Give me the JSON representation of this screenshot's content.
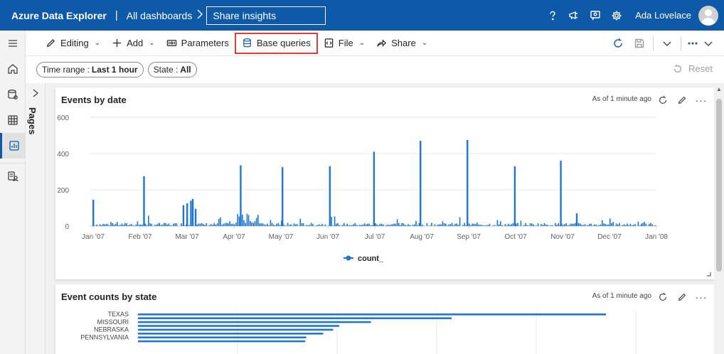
{
  "topbar": {
    "brand": "Azure Data Explorer",
    "separator": "|",
    "crumb": "All dashboards",
    "dashboard_title": "Share insights",
    "user_name": "Ada Lovelace",
    "icons": [
      "help-icon",
      "feedback-icon",
      "people-feedback-icon",
      "settings-icon"
    ]
  },
  "rail": {
    "items": [
      "menu-icon",
      "home-icon",
      "data-icon",
      "query-icon",
      "dashboards-icon",
      "monitor-icon"
    ]
  },
  "toolbar": {
    "editing": "Editing",
    "add": "Add",
    "parameters": "Parameters",
    "base_queries": "Base queries",
    "file": "File",
    "share": "Share",
    "highlight_color": "#e03b3b"
  },
  "filters": {
    "time_range_label": "Time range :",
    "time_range_value": "Last 1 hour",
    "state_label": "State :",
    "state_value": "All",
    "reset": "Reset"
  },
  "pages": {
    "label": "Pages"
  },
  "cards": [
    {
      "title": "Events by date",
      "as_of": "As of 1 minute ago"
    },
    {
      "title": "Event counts by state",
      "as_of": "As of 1 minute ago"
    }
  ],
  "chart_data": [
    {
      "type": "bar",
      "ylim": [
        0,
        600
      ],
      "yticks": [
        "0",
        "200",
        "400",
        "600"
      ],
      "xticks": [
        "Jan '07",
        "Feb '07",
        "Mar '07",
        "Apr '07",
        "May '07",
        "Jun '07",
        "Jul '07",
        "Aug '07",
        "Sep '07",
        "Oct '07",
        "Nov '07",
        "Dec '07",
        "Jan '08"
      ],
      "legend": [
        "count_"
      ],
      "series_color": "#1f77d0",
      "spikes": [
        {
          "x": 0.0,
          "y": 145
        },
        {
          "x": 1.08,
          "y": 275
        },
        {
          "x": 1.92,
          "y": 115
        },
        {
          "x": 2.0,
          "y": 125
        },
        {
          "x": 2.08,
          "y": 140
        },
        {
          "x": 2.12,
          "y": 150
        },
        {
          "x": 2.18,
          "y": 95
        },
        {
          "x": 3.14,
          "y": 335
        },
        {
          "x": 4.03,
          "y": 325
        },
        {
          "x": 5.04,
          "y": 330
        },
        {
          "x": 5.98,
          "y": 410
        },
        {
          "x": 6.97,
          "y": 470
        },
        {
          "x": 7.97,
          "y": 475
        },
        {
          "x": 8.98,
          "y": 330
        },
        {
          "x": 9.96,
          "y": 360
        },
        {
          "x": 10.3,
          "y": 70
        }
      ]
    },
    {
      "type": "bar",
      "orientation": "horizontal",
      "categories": [
        "TEXAS",
        "",
        "MISSOURI",
        "",
        "NEBRASKA",
        "",
        "PENNSYLVANIA",
        ""
      ],
      "values": [
        4700,
        3150,
        2340,
        2020,
        1960,
        1860,
        1690,
        1680
      ],
      "series_color": "#1f77d0"
    }
  ]
}
